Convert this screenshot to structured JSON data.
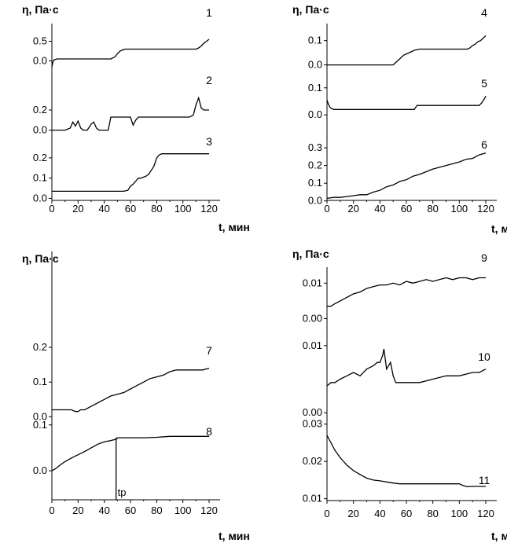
{
  "chart_data": [
    {
      "type": "line",
      "panel": "top-left",
      "ylabel": "η, Па·с",
      "xlabel": "t, мин",
      "xticks": [
        "0",
        "20",
        "40",
        "60",
        "80",
        "100",
        "120"
      ],
      "xlim": [
        0,
        130
      ],
      "series": [
        {
          "name": "1",
          "yticks": [
            "0.5",
            "0.0"
          ],
          "ylim": [
            -0.15,
            0.75
          ],
          "x": [
            0,
            1,
            2,
            4,
            10,
            20,
            30,
            40,
            45,
            48,
            50,
            52,
            54,
            56,
            60,
            70,
            80,
            90,
            100,
            110,
            112,
            114,
            116,
            118,
            120
          ],
          "y": [
            -0.15,
            0.0,
            0.03,
            0.05,
            0.05,
            0.05,
            0.05,
            0.05,
            0.05,
            0.1,
            0.18,
            0.25,
            0.28,
            0.3,
            0.3,
            0.3,
            0.3,
            0.3,
            0.3,
            0.3,
            0.33,
            0.38,
            0.45,
            0.5,
            0.55
          ]
        },
        {
          "name": "2",
          "yticks": [
            "0.2",
            "0.0"
          ],
          "ylim": [
            -0.05,
            0.45
          ],
          "x": [
            0,
            5,
            10,
            14,
            16,
            18,
            20,
            22,
            24,
            27,
            30,
            32,
            34,
            36,
            40,
            43,
            45,
            48,
            55,
            60,
            62,
            64,
            66,
            70,
            80,
            90,
            100,
            105,
            108,
            110,
            112,
            114,
            116,
            120
          ],
          "y": [
            0.0,
            0.0,
            0.0,
            0.02,
            0.08,
            0.04,
            0.09,
            0.02,
            0.0,
            0.0,
            0.06,
            0.08,
            0.02,
            0.0,
            0.0,
            0.0,
            0.13,
            0.13,
            0.13,
            0.13,
            0.05,
            0.1,
            0.13,
            0.13,
            0.13,
            0.13,
            0.13,
            0.13,
            0.15,
            0.25,
            0.32,
            0.22,
            0.2,
            0.2
          ]
        },
        {
          "name": "3",
          "yticks": [
            "0.2",
            "0.1",
            "0.0"
          ],
          "ylim": [
            -0.01,
            0.25
          ],
          "x": [
            0,
            20,
            40,
            55,
            58,
            60,
            62,
            64,
            66,
            68,
            70,
            72,
            74,
            76,
            78,
            80,
            82,
            84,
            90,
            100,
            110,
            120
          ],
          "y": [
            0.035,
            0.035,
            0.035,
            0.035,
            0.04,
            0.06,
            0.07,
            0.085,
            0.1,
            0.1,
            0.105,
            0.11,
            0.12,
            0.14,
            0.16,
            0.2,
            0.215,
            0.22,
            0.22,
            0.22,
            0.22,
            0.22
          ]
        }
      ]
    },
    {
      "type": "line",
      "panel": "top-right",
      "ylabel": "η, Па·с",
      "xlabel": "t, мин",
      "xticks": [
        "0",
        "20",
        "40",
        "60",
        "80",
        "100",
        "120"
      ],
      "xlim": [
        0,
        130
      ],
      "series": [
        {
          "name": "4",
          "yticks": [
            "0.1",
            "0.0"
          ],
          "ylim": [
            -0.04,
            0.17
          ],
          "x": [
            0,
            10,
            20,
            30,
            40,
            50,
            52,
            55,
            58,
            62,
            66,
            70,
            80,
            90,
            100,
            106,
            108,
            110,
            112,
            114,
            116,
            118,
            120
          ],
          "y": [
            0.0,
            0.0,
            0.0,
            0.0,
            0.0,
            0.0,
            0.01,
            0.025,
            0.04,
            0.05,
            0.06,
            0.065,
            0.065,
            0.065,
            0.065,
            0.065,
            0.07,
            0.08,
            0.085,
            0.095,
            0.1,
            0.11,
            0.12
          ]
        },
        {
          "name": "5",
          "yticks": [
            "0.1",
            "0.0"
          ],
          "ylim": [
            -0.04,
            0.14
          ],
          "x": [
            0,
            1,
            2,
            3,
            5,
            10,
            20,
            40,
            60,
            66,
            68,
            70,
            75,
            80,
            90,
            100,
            110,
            115,
            117,
            119,
            120
          ],
          "y": [
            0.055,
            0.04,
            0.03,
            0.025,
            0.02,
            0.02,
            0.02,
            0.02,
            0.02,
            0.02,
            0.035,
            0.035,
            0.035,
            0.035,
            0.035,
            0.035,
            0.035,
            0.035,
            0.045,
            0.06,
            0.07
          ]
        },
        {
          "name": "6",
          "yticks": [
            "0.3",
            "0.2",
            "0.1",
            "0.0"
          ],
          "ylim": [
            -0.01,
            0.38
          ],
          "x": [
            0,
            5,
            10,
            15,
            20,
            25,
            30,
            35,
            40,
            45,
            50,
            55,
            60,
            65,
            70,
            75,
            80,
            85,
            90,
            95,
            100,
            105,
            110,
            115,
            120
          ],
          "y": [
            0.015,
            0.02,
            0.02,
            0.025,
            0.03,
            0.035,
            0.035,
            0.05,
            0.06,
            0.08,
            0.09,
            0.11,
            0.12,
            0.14,
            0.15,
            0.165,
            0.18,
            0.19,
            0.2,
            0.21,
            0.22,
            0.235,
            0.24,
            0.26,
            0.27
          ]
        }
      ]
    },
    {
      "type": "line",
      "panel": "bottom-left",
      "ylabel": "η, Па·с",
      "xlabel": "t, мин",
      "xticks": [
        "0",
        "20",
        "40",
        "60",
        "80",
        "100",
        "120"
      ],
      "xlim": [
        0,
        130
      ],
      "annotation": "tp",
      "annotation_x": 49,
      "series": [
        {
          "name": "7",
          "yticks": [
            "0.2",
            "0.1",
            "0.0"
          ],
          "ylim": [
            -0.04,
            0.25
          ],
          "x": [
            0,
            5,
            10,
            15,
            18,
            20,
            22,
            25,
            30,
            35,
            40,
            45,
            50,
            55,
            60,
            65,
            70,
            75,
            80,
            85,
            90,
            95,
            100,
            110,
            115,
            120
          ],
          "y": [
            0.02,
            0.02,
            0.02,
            0.02,
            0.015,
            0.015,
            0.02,
            0.02,
            0.03,
            0.04,
            0.05,
            0.06,
            0.065,
            0.07,
            0.08,
            0.09,
            0.1,
            0.11,
            0.115,
            0.12,
            0.13,
            0.135,
            0.135,
            0.135,
            0.135,
            0.14
          ]
        },
        {
          "name": "8",
          "yticks": [
            "0.1",
            "0.0"
          ],
          "ylim": [
            -0.065,
            0.115
          ],
          "x": [
            0,
            3,
            6,
            10,
            15,
            20,
            25,
            30,
            35,
            40,
            45,
            48,
            49,
            50,
            60,
            70,
            80,
            90,
            100,
            110,
            120
          ],
          "y": [
            0.0,
            0.005,
            0.012,
            0.02,
            0.028,
            0.035,
            0.042,
            0.05,
            0.058,
            0.063,
            0.066,
            0.068,
            0.068,
            0.072,
            0.072,
            0.072,
            0.073,
            0.075,
            0.075,
            0.075,
            0.075
          ]
        }
      ]
    },
    {
      "type": "line",
      "panel": "bottom-right",
      "ylabel": "η, Па·с",
      "xlabel": "t, мин",
      "xticks": [
        "0",
        "20",
        "40",
        "60",
        "80",
        "100",
        "120"
      ],
      "xlim": [
        0,
        130
      ],
      "series": [
        {
          "name": "9",
          "yticks": [
            "0.01",
            "0.00"
          ],
          "ylim": [
            -0.001,
            0.0145
          ],
          "x": [
            0,
            3,
            5,
            10,
            15,
            20,
            25,
            30,
            35,
            40,
            45,
            50,
            55,
            60,
            65,
            70,
            75,
            80,
            85,
            90,
            95,
            100,
            105,
            110,
            115,
            120
          ],
          "y": [
            0.0035,
            0.0035,
            0.004,
            0.005,
            0.006,
            0.007,
            0.0075,
            0.0085,
            0.009,
            0.0095,
            0.0095,
            0.01,
            0.0095,
            0.0105,
            0.01,
            0.0105,
            0.011,
            0.0105,
            0.011,
            0.0115,
            0.011,
            0.0115,
            0.0115,
            0.011,
            0.0115,
            0.0115
          ]
        },
        {
          "name": "10",
          "yticks": [
            "0.01",
            "0.00"
          ],
          "ylim": [
            -0.0015,
            0.0135
          ],
          "x": [
            0,
            3,
            6,
            10,
            15,
            20,
            25,
            30,
            35,
            38,
            40,
            42,
            43,
            45,
            48,
            50,
            52,
            55,
            60,
            70,
            80,
            90,
            100,
            110,
            115,
            120
          ],
          "y": [
            0.004,
            0.0045,
            0.0045,
            0.005,
            0.0055,
            0.006,
            0.0055,
            0.0065,
            0.007,
            0.0075,
            0.0075,
            0.0085,
            0.0095,
            0.0065,
            0.0075,
            0.0055,
            0.0045,
            0.0045,
            0.0045,
            0.0045,
            0.005,
            0.0055,
            0.0055,
            0.006,
            0.006,
            0.0065
          ]
        },
        {
          "name": "11",
          "yticks": [
            "0.03",
            "0.02",
            "0.01"
          ],
          "ylim": [
            0.0095,
            0.031
          ],
          "x": [
            0,
            3,
            6,
            10,
            15,
            20,
            25,
            30,
            35,
            40,
            45,
            50,
            55,
            60,
            70,
            80,
            90,
            100,
            103,
            106,
            110,
            115,
            120
          ],
          "y": [
            0.027,
            0.025,
            0.023,
            0.021,
            0.019,
            0.0175,
            0.0165,
            0.0155,
            0.015,
            0.0148,
            0.0145,
            0.0142,
            0.014,
            0.014,
            0.014,
            0.014,
            0.014,
            0.014,
            0.0135,
            0.0132,
            0.0133,
            0.0133,
            0.0133
          ]
        }
      ]
    }
  ]
}
